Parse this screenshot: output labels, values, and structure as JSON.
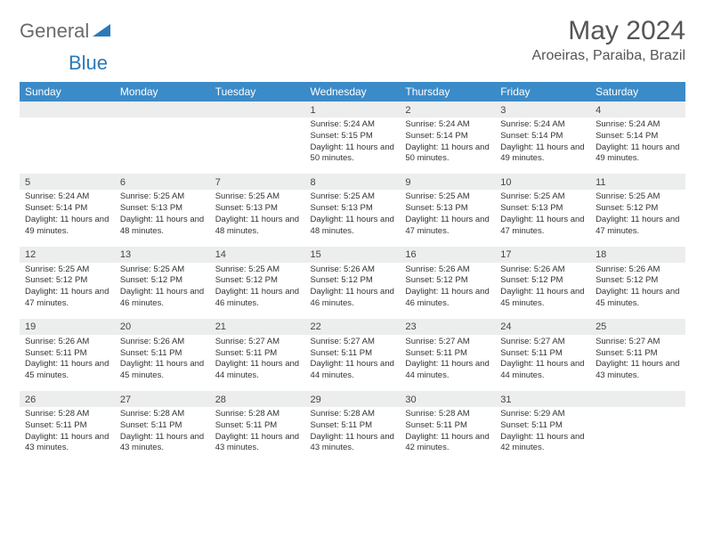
{
  "brand": {
    "part1": "General",
    "part2": "Blue"
  },
  "title": "May 2024",
  "location": "Aroeiras, Paraiba, Brazil",
  "colors": {
    "headerBlue": "#3b8bc8",
    "dayNumBg": "#eceded",
    "border": "#888888",
    "logoBlue": "#2a7ab9",
    "logoGray": "#6b6b6b"
  },
  "dayNames": [
    "Sunday",
    "Monday",
    "Tuesday",
    "Wednesday",
    "Thursday",
    "Friday",
    "Saturday"
  ],
  "weeks": [
    [
      {
        "n": "",
        "sr": "",
        "ss": "",
        "dl": ""
      },
      {
        "n": "",
        "sr": "",
        "ss": "",
        "dl": ""
      },
      {
        "n": "",
        "sr": "",
        "ss": "",
        "dl": ""
      },
      {
        "n": "1",
        "sr": "5:24 AM",
        "ss": "5:15 PM",
        "dl": "11 hours and 50 minutes."
      },
      {
        "n": "2",
        "sr": "5:24 AM",
        "ss": "5:14 PM",
        "dl": "11 hours and 50 minutes."
      },
      {
        "n": "3",
        "sr": "5:24 AM",
        "ss": "5:14 PM",
        "dl": "11 hours and 49 minutes."
      },
      {
        "n": "4",
        "sr": "5:24 AM",
        "ss": "5:14 PM",
        "dl": "11 hours and 49 minutes."
      }
    ],
    [
      {
        "n": "5",
        "sr": "5:24 AM",
        "ss": "5:14 PM",
        "dl": "11 hours and 49 minutes."
      },
      {
        "n": "6",
        "sr": "5:25 AM",
        "ss": "5:13 PM",
        "dl": "11 hours and 48 minutes."
      },
      {
        "n": "7",
        "sr": "5:25 AM",
        "ss": "5:13 PM",
        "dl": "11 hours and 48 minutes."
      },
      {
        "n": "8",
        "sr": "5:25 AM",
        "ss": "5:13 PM",
        "dl": "11 hours and 48 minutes."
      },
      {
        "n": "9",
        "sr": "5:25 AM",
        "ss": "5:13 PM",
        "dl": "11 hours and 47 minutes."
      },
      {
        "n": "10",
        "sr": "5:25 AM",
        "ss": "5:13 PM",
        "dl": "11 hours and 47 minutes."
      },
      {
        "n": "11",
        "sr": "5:25 AM",
        "ss": "5:12 PM",
        "dl": "11 hours and 47 minutes."
      }
    ],
    [
      {
        "n": "12",
        "sr": "5:25 AM",
        "ss": "5:12 PM",
        "dl": "11 hours and 47 minutes."
      },
      {
        "n": "13",
        "sr": "5:25 AM",
        "ss": "5:12 PM",
        "dl": "11 hours and 46 minutes."
      },
      {
        "n": "14",
        "sr": "5:25 AM",
        "ss": "5:12 PM",
        "dl": "11 hours and 46 minutes."
      },
      {
        "n": "15",
        "sr": "5:26 AM",
        "ss": "5:12 PM",
        "dl": "11 hours and 46 minutes."
      },
      {
        "n": "16",
        "sr": "5:26 AM",
        "ss": "5:12 PM",
        "dl": "11 hours and 46 minutes."
      },
      {
        "n": "17",
        "sr": "5:26 AM",
        "ss": "5:12 PM",
        "dl": "11 hours and 45 minutes."
      },
      {
        "n": "18",
        "sr": "5:26 AM",
        "ss": "5:12 PM",
        "dl": "11 hours and 45 minutes."
      }
    ],
    [
      {
        "n": "19",
        "sr": "5:26 AM",
        "ss": "5:11 PM",
        "dl": "11 hours and 45 minutes."
      },
      {
        "n": "20",
        "sr": "5:26 AM",
        "ss": "5:11 PM",
        "dl": "11 hours and 45 minutes."
      },
      {
        "n": "21",
        "sr": "5:27 AM",
        "ss": "5:11 PM",
        "dl": "11 hours and 44 minutes."
      },
      {
        "n": "22",
        "sr": "5:27 AM",
        "ss": "5:11 PM",
        "dl": "11 hours and 44 minutes."
      },
      {
        "n": "23",
        "sr": "5:27 AM",
        "ss": "5:11 PM",
        "dl": "11 hours and 44 minutes."
      },
      {
        "n": "24",
        "sr": "5:27 AM",
        "ss": "5:11 PM",
        "dl": "11 hours and 44 minutes."
      },
      {
        "n": "25",
        "sr": "5:27 AM",
        "ss": "5:11 PM",
        "dl": "11 hours and 43 minutes."
      }
    ],
    [
      {
        "n": "26",
        "sr": "5:28 AM",
        "ss": "5:11 PM",
        "dl": "11 hours and 43 minutes."
      },
      {
        "n": "27",
        "sr": "5:28 AM",
        "ss": "5:11 PM",
        "dl": "11 hours and 43 minutes."
      },
      {
        "n": "28",
        "sr": "5:28 AM",
        "ss": "5:11 PM",
        "dl": "11 hours and 43 minutes."
      },
      {
        "n": "29",
        "sr": "5:28 AM",
        "ss": "5:11 PM",
        "dl": "11 hours and 43 minutes."
      },
      {
        "n": "30",
        "sr": "5:28 AM",
        "ss": "5:11 PM",
        "dl": "11 hours and 42 minutes."
      },
      {
        "n": "31",
        "sr": "5:29 AM",
        "ss": "5:11 PM",
        "dl": "11 hours and 42 minutes."
      },
      {
        "n": "",
        "sr": "",
        "ss": "",
        "dl": ""
      }
    ]
  ],
  "labels": {
    "sunrise": "Sunrise:",
    "sunset": "Sunset:",
    "daylight": "Daylight:"
  }
}
